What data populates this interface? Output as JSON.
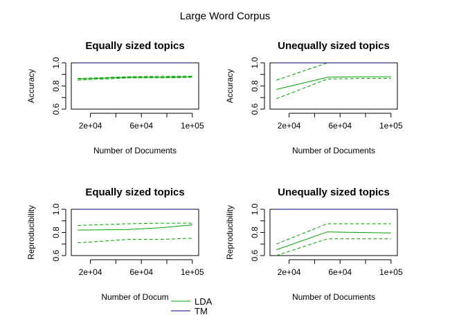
{
  "figure_title": "Large Word Corpus",
  "colors": {
    "lda": "#00a000",
    "tm": "#000080",
    "axis": "#000000"
  },
  "legend": {
    "placement": "bottom-center",
    "entries": [
      {
        "name": "LDA",
        "color": "#00a000"
      },
      {
        "name": "TM",
        "color": "#000080"
      }
    ]
  },
  "chart_data": [
    {
      "type": "line",
      "title": "Equally sized topics",
      "xlabel": "Number of Documents",
      "ylabel": "Accuracy",
      "xlim": [
        5000,
        105000
      ],
      "ylim": [
        0.6,
        1.0
      ],
      "xticks": [
        20000,
        40000,
        60000,
        80000,
        100000
      ],
      "xtick_labels": [
        "2e+04",
        "",
        "6e+04",
        "",
        "1e+05"
      ],
      "yticks": [
        0.6,
        0.7,
        0.8,
        0.9,
        1.0
      ],
      "ytick_labels": [
        "0.6",
        "",
        "0.8",
        "",
        "1.0"
      ],
      "x": [
        10000,
        50000,
        75000,
        100000
      ],
      "series": [
        {
          "name": "LDA",
          "style": "solid",
          "color": "#00a000",
          "values": [
            0.86,
            0.875,
            0.875,
            0.88
          ]
        },
        {
          "name": "LDA",
          "style": "dashed",
          "color": "#00a000",
          "values": [
            0.85,
            0.87,
            0.87,
            0.875
          ]
        },
        {
          "name": "LDA",
          "style": "dashed",
          "color": "#00a000",
          "values": [
            0.865,
            0.88,
            0.885,
            0.885
          ]
        },
        {
          "name": "TM",
          "style": "solid",
          "color": "#000080",
          "values": [
            1.0,
            1.0,
            1.0,
            1.0
          ]
        }
      ]
    },
    {
      "type": "line",
      "title": "Unequally sized topics",
      "xlabel": "Number of Documents",
      "ylabel": "Accuracy",
      "xlim": [
        5000,
        105000
      ],
      "ylim": [
        0.6,
        1.0
      ],
      "xticks": [
        20000,
        40000,
        60000,
        80000,
        100000
      ],
      "xtick_labels": [
        "2e+04",
        "",
        "6e+04",
        "",
        "1e+05"
      ],
      "yticks": [
        0.6,
        0.7,
        0.8,
        0.9,
        1.0
      ],
      "ytick_labels": [
        "0.6",
        "",
        "0.8",
        "",
        "1.0"
      ],
      "x": [
        10000,
        50000,
        75000,
        100000
      ],
      "series": [
        {
          "name": "LDA",
          "style": "solid",
          "color": "#00a000",
          "values": [
            0.77,
            0.875,
            0.88,
            0.88
          ]
        },
        {
          "name": "LDA",
          "style": "dashed",
          "color": "#00a000",
          "values": [
            0.69,
            0.86,
            0.865,
            0.865
          ]
        },
        {
          "name": "LDA",
          "style": "dashed",
          "color": "#00a000",
          "values": [
            0.85,
            1.0,
            1.0,
            1.0
          ]
        },
        {
          "name": "TM",
          "style": "solid",
          "color": "#000080",
          "values": [
            1.0,
            1.0,
            1.0,
            1.0
          ]
        }
      ]
    },
    {
      "type": "line",
      "title": "Equally sized topics",
      "xlabel": "Number of Docum",
      "ylabel": "Reproducibility",
      "xlim": [
        5000,
        105000
      ],
      "ylim": [
        0.6,
        1.0
      ],
      "xticks": [
        20000,
        40000,
        60000,
        80000,
        100000
      ],
      "xtick_labels": [
        "2e+04",
        "",
        "6e+04",
        "",
        "1e+05"
      ],
      "yticks": [
        0.6,
        0.7,
        0.8,
        0.9,
        1.0
      ],
      "ytick_labels": [
        "0.6",
        "",
        "0.8",
        "",
        "1.0"
      ],
      "x": [
        10000,
        50000,
        75000,
        100000
      ],
      "series": [
        {
          "name": "LDA",
          "style": "solid",
          "color": "#00a000",
          "values": [
            0.82,
            0.825,
            0.84,
            0.865
          ]
        },
        {
          "name": "LDA",
          "style": "dashed",
          "color": "#00a000",
          "values": [
            0.71,
            0.74,
            0.74,
            0.75
          ]
        },
        {
          "name": "LDA",
          "style": "dashed",
          "color": "#00a000",
          "values": [
            0.86,
            0.875,
            0.88,
            0.88
          ]
        },
        {
          "name": "TM",
          "style": "solid",
          "color": "#000080",
          "values": [
            1.0,
            1.0,
            1.0,
            1.0
          ]
        }
      ]
    },
    {
      "type": "line",
      "title": "Unequally sized topics",
      "xlabel": "Number of Documents",
      "ylabel": "Reproducibility",
      "xlim": [
        5000,
        105000
      ],
      "ylim": [
        0.6,
        1.0
      ],
      "xticks": [
        20000,
        40000,
        60000,
        80000,
        100000
      ],
      "xtick_labels": [
        "2e+04",
        "",
        "6e+04",
        "",
        "1e+05"
      ],
      "yticks": [
        0.6,
        0.7,
        0.8,
        0.9,
        1.0
      ],
      "ytick_labels": [
        "0.6",
        "",
        "0.8",
        "",
        "1.0"
      ],
      "x": [
        10000,
        50000,
        75000,
        100000
      ],
      "series": [
        {
          "name": "LDA",
          "style": "solid",
          "color": "#00a000",
          "values": [
            0.65,
            0.805,
            0.8,
            0.795
          ]
        },
        {
          "name": "LDA",
          "style": "dashed",
          "color": "#00a000",
          "values": [
            0.6,
            0.745,
            0.745,
            0.745
          ]
        },
        {
          "name": "LDA",
          "style": "dashed",
          "color": "#00a000",
          "values": [
            0.7,
            0.875,
            0.875,
            0.875
          ]
        },
        {
          "name": "TM",
          "style": "solid",
          "color": "#000080",
          "values": [
            1.0,
            1.0,
            1.0,
            1.0
          ]
        }
      ]
    }
  ]
}
